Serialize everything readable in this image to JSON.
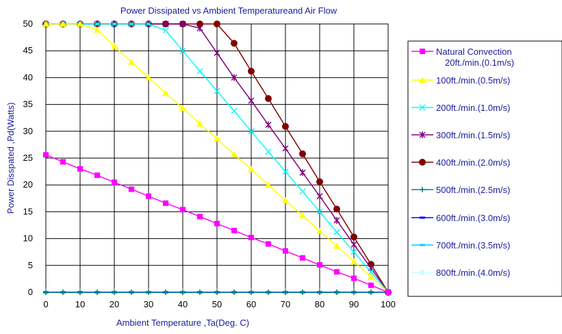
{
  "chart_data": {
    "type": "line",
    "title": "Power Dissipated vs Ambient Temperatureand Air Flow",
    "xlabel": "Ambient Temperature ,Ta(Deg. C)",
    "ylabel": "Power Disspated ,Pd(Watts)",
    "xlim": [
      0,
      100
    ],
    "ylim": [
      0,
      50
    ],
    "xticks": [
      "0",
      "10",
      "20",
      "30",
      "40",
      "50",
      "60",
      "70",
      "80",
      "90",
      "100"
    ],
    "yticks": [
      "0",
      "5",
      "10",
      "15",
      "20",
      "25",
      "30",
      "35",
      "40",
      "45",
      "50"
    ],
    "grid": true,
    "legend_position": "right",
    "x": [
      0,
      5,
      10,
      15,
      20,
      25,
      30,
      35,
      40,
      45,
      50,
      55,
      60,
      65,
      70,
      75,
      80,
      85,
      90,
      95,
      100
    ],
    "series": [
      {
        "name": "Natural Convection 20ft./min.(0.1m/s)",
        "color": "#ff00ff",
        "marker": "square",
        "values": [
          25.6,
          24.3,
          23.0,
          21.8,
          20.5,
          19.2,
          17.9,
          16.6,
          15.4,
          14.1,
          12.8,
          11.5,
          10.2,
          9.0,
          7.7,
          6.4,
          5.1,
          3.8,
          2.6,
          1.3,
          0
        ]
      },
      {
        "name": "100ft./min.(0.5m/s)",
        "color": "#ffff00",
        "marker": "triangle",
        "values": [
          50,
          50,
          50,
          48.9,
          45.9,
          42.9,
          40.0,
          37.1,
          34.3,
          31.4,
          28.6,
          25.7,
          22.9,
          20.0,
          17.1,
          14.3,
          11.4,
          8.6,
          5.7,
          2.9,
          0
        ]
      },
      {
        "name": "200ft./min.(1.0m/s)",
        "color": "#00ffff",
        "marker": "x",
        "values": [
          50,
          50,
          50,
          50,
          50,
          50,
          50,
          48.8,
          45.0,
          41.2,
          37.5,
          33.8,
          30.0,
          26.2,
          22.5,
          18.8,
          15.0,
          11.2,
          7.5,
          3.8,
          0
        ]
      },
      {
        "name": "300ft./min.(1.5m/s)",
        "color": "#800080",
        "marker": "star",
        "values": [
          50,
          50,
          50,
          50,
          50,
          50,
          50,
          50,
          50,
          49.2,
          44.6,
          40.0,
          35.7,
          31.2,
          26.8,
          22.3,
          17.9,
          13.4,
          8.9,
          4.5,
          0
        ]
      },
      {
        "name": "400ft./min.(2.0m/s)",
        "color": "#800000",
        "marker": "circle",
        "values": [
          50,
          50,
          50,
          50,
          50,
          50,
          50,
          50,
          50,
          50,
          50,
          46.4,
          41.2,
          36.1,
          30.9,
          25.8,
          20.6,
          15.5,
          10.3,
          5.2,
          0
        ]
      },
      {
        "name": "500ft./min.(2.5m/s)",
        "color": "#008080",
        "marker": "plus",
        "values": [
          0,
          0,
          0,
          0,
          0,
          0,
          0,
          0,
          0,
          0,
          0,
          0,
          0,
          0,
          0,
          0,
          0,
          0,
          0,
          0,
          0
        ]
      },
      {
        "name": "600ft./min.(3.0m/s)",
        "color": "#0000ff",
        "marker": "dash",
        "values": [
          0,
          0,
          0,
          0,
          0,
          0,
          0,
          0,
          0,
          0,
          0,
          0,
          0,
          0,
          0,
          0,
          0,
          0,
          0,
          0,
          0
        ]
      },
      {
        "name": "700ft./min.(3.5m/s)",
        "color": "#00ccff",
        "marker": "dash",
        "values": [
          0,
          0,
          0,
          0,
          0,
          0,
          0,
          0,
          0,
          0,
          0,
          0,
          0,
          0,
          0,
          0,
          0,
          0,
          0,
          0,
          0
        ]
      },
      {
        "name": "800ft./min.(4.0m/s)",
        "color": "#ccffff",
        "marker": "diamond",
        "values": [
          0,
          0,
          0,
          0,
          0,
          0,
          0,
          0,
          0,
          0,
          0,
          0,
          0,
          0,
          0,
          0,
          0,
          0,
          0,
          0,
          0
        ]
      }
    ]
  }
}
